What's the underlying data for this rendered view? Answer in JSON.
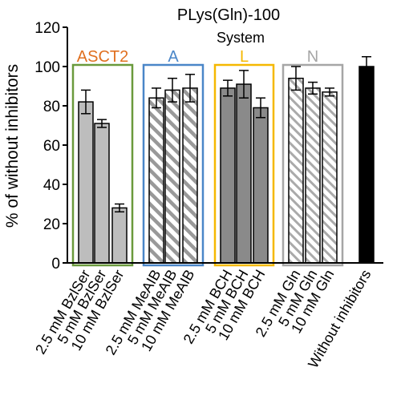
{
  "chart_data": {
    "type": "bar",
    "title": "PLys(Gln)-100",
    "subtitle": "System",
    "ylabel": "% of without inhibitors",
    "xlabel": "",
    "ylim": [
      0,
      120
    ],
    "yticks": [
      0,
      20,
      40,
      60,
      80,
      100,
      120
    ],
    "grid": false,
    "categories": [
      "2.5 mM BzlSer",
      "5 mM BzlSer",
      "10 mM BzlSer",
      "2.5 mM MeAIB",
      "5 mM MeAIB",
      "10 mM MeAIB",
      "2.5 mM BCH",
      "5 mM BCH",
      "10 mM BCH",
      "2.5 mM Gln",
      "5 mM Gln",
      "10 mM Gln",
      "Without inhibitors"
    ],
    "values": [
      82,
      71,
      28,
      84,
      88,
      89,
      89,
      91,
      79,
      94,
      89,
      87,
      100
    ],
    "errors": [
      6,
      2,
      2,
      5,
      6,
      7,
      4,
      7,
      5,
      6,
      3,
      2,
      5
    ],
    "systems": [
      {
        "name": "ASCT2",
        "color": "#e07020",
        "box_color": "#6a9a3c",
        "bars": [
          0,
          1,
          2
        ],
        "fill": "solid",
        "fill_color": "#bdbdbd"
      },
      {
        "name": "A",
        "color": "#4a86c8",
        "box_color": "#4a86c8",
        "bars": [
          3,
          4,
          5
        ],
        "fill": "hatch",
        "fill_color": "#999999"
      },
      {
        "name": "L",
        "color": "#f5b800",
        "box_color": "#f5b800",
        "bars": [
          6,
          7,
          8
        ],
        "fill": "solid",
        "fill_color": "#8a8a8a"
      },
      {
        "name": "N",
        "color": "#a6a6a6",
        "box_color": "#a6a6a6",
        "bars": [
          9,
          10,
          11
        ],
        "fill": "hatch",
        "fill_color": "#aaaaaa"
      }
    ],
    "control": {
      "bar": 12,
      "fill_color": "#000000"
    }
  }
}
